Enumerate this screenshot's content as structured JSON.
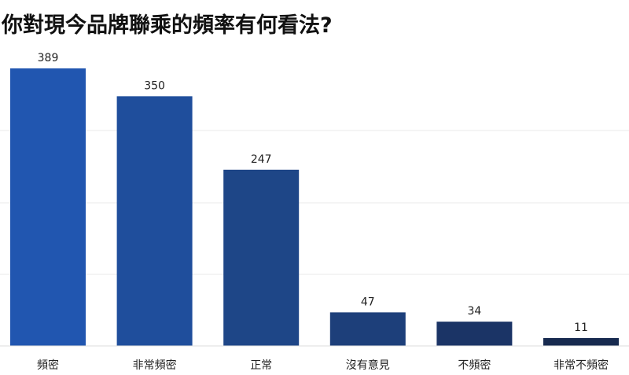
{
  "chart_data": {
    "type": "bar",
    "title": "你對現今品牌聯乘的頻率有何看法?",
    "categories": [
      "頻密",
      "非常頻密",
      "正常",
      "沒有意見",
      "不頻密",
      "非常不頻密"
    ],
    "values": [
      389,
      350,
      247,
      47,
      34,
      11
    ],
    "colors": [
      "#2156b0",
      "#1f4e9c",
      "#1e4687",
      "#1d3f7a",
      "#1b3466",
      "#172a4f"
    ],
    "xlabel": "",
    "ylabel": "",
    "ylim": [
      0,
      389
    ],
    "grid": true,
    "gridline_color": "#e8e8e8"
  }
}
